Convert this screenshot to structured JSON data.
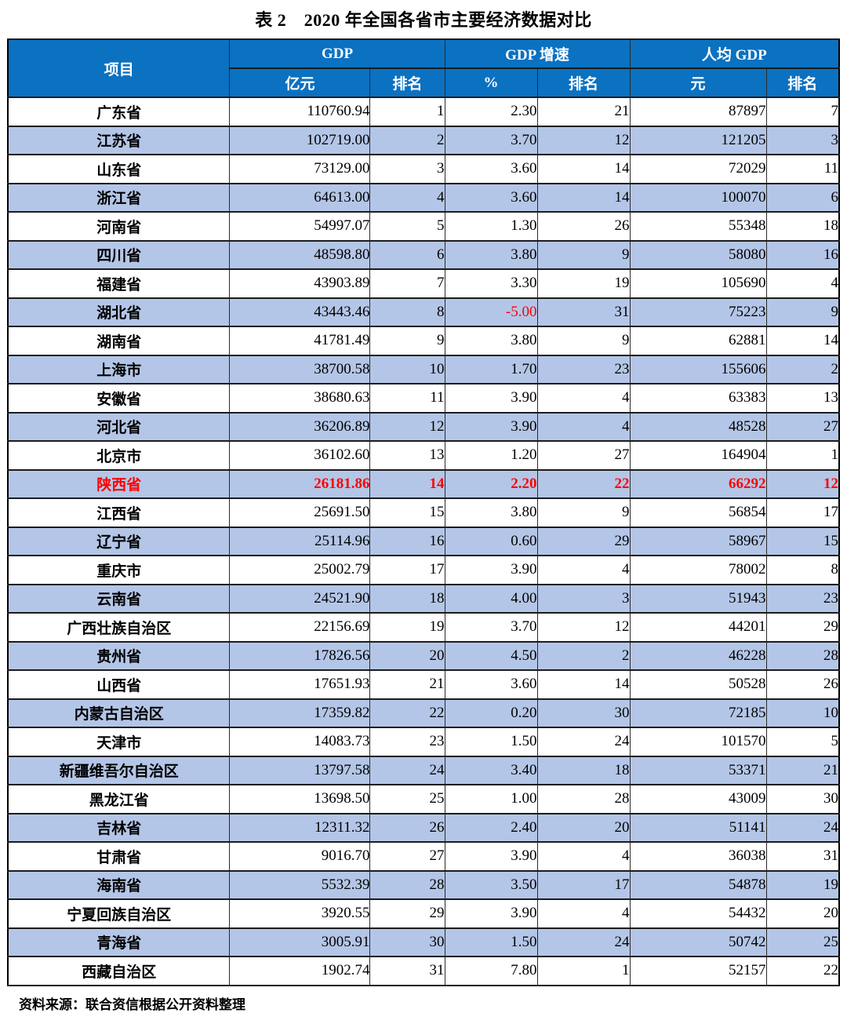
{
  "title": "表 2　2020 年全国各省市主要经济数据对比",
  "source_note": "资料来源：联合资信根据公开资料整理",
  "colors": {
    "header_bg": "#0B71C1",
    "alt_row_bg": "#B4C6E7",
    "highlight_text": "#FF0000",
    "negative_text": "#FF0000"
  },
  "table": {
    "header": {
      "item": "项目",
      "groups": [
        {
          "label": "GDP",
          "sub": [
            "亿元",
            "排名"
          ]
        },
        {
          "label": "GDP 增速",
          "sub": [
            "%",
            "排名"
          ]
        },
        {
          "label": "人均 GDP",
          "sub": [
            "元",
            "排名"
          ]
        }
      ]
    },
    "rows": [
      {
        "province": "广东省",
        "gdp": "110760.94",
        "gdp_rank": "1",
        "growth": "2.30",
        "growth_rank": "21",
        "per_capita": "87897",
        "pc_rank": "7",
        "highlight": false,
        "growth_red": false
      },
      {
        "province": "江苏省",
        "gdp": "102719.00",
        "gdp_rank": "2",
        "growth": "3.70",
        "growth_rank": "12",
        "per_capita": "121205",
        "pc_rank": "3",
        "highlight": false,
        "growth_red": false
      },
      {
        "province": "山东省",
        "gdp": "73129.00",
        "gdp_rank": "3",
        "growth": "3.60",
        "growth_rank": "14",
        "per_capita": "72029",
        "pc_rank": "11",
        "highlight": false,
        "growth_red": false
      },
      {
        "province": "浙江省",
        "gdp": "64613.00",
        "gdp_rank": "4",
        "growth": "3.60",
        "growth_rank": "14",
        "per_capita": "100070",
        "pc_rank": "6",
        "highlight": false,
        "growth_red": false
      },
      {
        "province": "河南省",
        "gdp": "54997.07",
        "gdp_rank": "5",
        "growth": "1.30",
        "growth_rank": "26",
        "per_capita": "55348",
        "pc_rank": "18",
        "highlight": false,
        "growth_red": false
      },
      {
        "province": "四川省",
        "gdp": "48598.80",
        "gdp_rank": "6",
        "growth": "3.80",
        "growth_rank": "9",
        "per_capita": "58080",
        "pc_rank": "16",
        "highlight": false,
        "growth_red": false
      },
      {
        "province": "福建省",
        "gdp": "43903.89",
        "gdp_rank": "7",
        "growth": "3.30",
        "growth_rank": "19",
        "per_capita": "105690",
        "pc_rank": "4",
        "highlight": false,
        "growth_red": false
      },
      {
        "province": "湖北省",
        "gdp": "43443.46",
        "gdp_rank": "8",
        "growth": "-5.00",
        "growth_rank": "31",
        "per_capita": "75223",
        "pc_rank": "9",
        "highlight": false,
        "growth_red": true
      },
      {
        "province": "湖南省",
        "gdp": "41781.49",
        "gdp_rank": "9",
        "growth": "3.80",
        "growth_rank": "9",
        "per_capita": "62881",
        "pc_rank": "14",
        "highlight": false,
        "growth_red": false
      },
      {
        "province": "上海市",
        "gdp": "38700.58",
        "gdp_rank": "10",
        "growth": "1.70",
        "growth_rank": "23",
        "per_capita": "155606",
        "pc_rank": "2",
        "highlight": false,
        "growth_red": false
      },
      {
        "province": "安徽省",
        "gdp": "38680.63",
        "gdp_rank": "11",
        "growth": "3.90",
        "growth_rank": "4",
        "per_capita": "63383",
        "pc_rank": "13",
        "highlight": false,
        "growth_red": false
      },
      {
        "province": "河北省",
        "gdp": "36206.89",
        "gdp_rank": "12",
        "growth": "3.90",
        "growth_rank": "4",
        "per_capita": "48528",
        "pc_rank": "27",
        "highlight": false,
        "growth_red": false
      },
      {
        "province": "北京市",
        "gdp": "36102.60",
        "gdp_rank": "13",
        "growth": "1.20",
        "growth_rank": "27",
        "per_capita": "164904",
        "pc_rank": "1",
        "highlight": false,
        "growth_red": false
      },
      {
        "province": "陕西省",
        "gdp": "26181.86",
        "gdp_rank": "14",
        "growth": "2.20",
        "growth_rank": "22",
        "per_capita": "66292",
        "pc_rank": "12",
        "highlight": true,
        "growth_red": false
      },
      {
        "province": "江西省",
        "gdp": "25691.50",
        "gdp_rank": "15",
        "growth": "3.80",
        "growth_rank": "9",
        "per_capita": "56854",
        "pc_rank": "17",
        "highlight": false,
        "growth_red": false
      },
      {
        "province": "辽宁省",
        "gdp": "25114.96",
        "gdp_rank": "16",
        "growth": "0.60",
        "growth_rank": "29",
        "per_capita": "58967",
        "pc_rank": "15",
        "highlight": false,
        "growth_red": false
      },
      {
        "province": "重庆市",
        "gdp": "25002.79",
        "gdp_rank": "17",
        "growth": "3.90",
        "growth_rank": "4",
        "per_capita": "78002",
        "pc_rank": "8",
        "highlight": false,
        "growth_red": false
      },
      {
        "province": "云南省",
        "gdp": "24521.90",
        "gdp_rank": "18",
        "growth": "4.00",
        "growth_rank": "3",
        "per_capita": "51943",
        "pc_rank": "23",
        "highlight": false,
        "growth_red": false
      },
      {
        "province": "广西壮族自治区",
        "gdp": "22156.69",
        "gdp_rank": "19",
        "growth": "3.70",
        "growth_rank": "12",
        "per_capita": "44201",
        "pc_rank": "29",
        "highlight": false,
        "growth_red": false
      },
      {
        "province": "贵州省",
        "gdp": "17826.56",
        "gdp_rank": "20",
        "growth": "4.50",
        "growth_rank": "2",
        "per_capita": "46228",
        "pc_rank": "28",
        "highlight": false,
        "growth_red": false
      },
      {
        "province": "山西省",
        "gdp": "17651.93",
        "gdp_rank": "21",
        "growth": "3.60",
        "growth_rank": "14",
        "per_capita": "50528",
        "pc_rank": "26",
        "highlight": false,
        "growth_red": false
      },
      {
        "province": "内蒙古自治区",
        "gdp": "17359.82",
        "gdp_rank": "22",
        "growth": "0.20",
        "growth_rank": "30",
        "per_capita": "72185",
        "pc_rank": "10",
        "highlight": false,
        "growth_red": false
      },
      {
        "province": "天津市",
        "gdp": "14083.73",
        "gdp_rank": "23",
        "growth": "1.50",
        "growth_rank": "24",
        "per_capita": "101570",
        "pc_rank": "5",
        "highlight": false,
        "growth_red": false
      },
      {
        "province": "新疆维吾尔自治区",
        "gdp": "13797.58",
        "gdp_rank": "24",
        "growth": "3.40",
        "growth_rank": "18",
        "per_capita": "53371",
        "pc_rank": "21",
        "highlight": false,
        "growth_red": false
      },
      {
        "province": "黑龙江省",
        "gdp": "13698.50",
        "gdp_rank": "25",
        "growth": "1.00",
        "growth_rank": "28",
        "per_capita": "43009",
        "pc_rank": "30",
        "highlight": false,
        "growth_red": false
      },
      {
        "province": "吉林省",
        "gdp": "12311.32",
        "gdp_rank": "26",
        "growth": "2.40",
        "growth_rank": "20",
        "per_capita": "51141",
        "pc_rank": "24",
        "highlight": false,
        "growth_red": false
      },
      {
        "province": "甘肃省",
        "gdp": "9016.70",
        "gdp_rank": "27",
        "growth": "3.90",
        "growth_rank": "4",
        "per_capita": "36038",
        "pc_rank": "31",
        "highlight": false,
        "growth_red": false
      },
      {
        "province": "海南省",
        "gdp": "5532.39",
        "gdp_rank": "28",
        "growth": "3.50",
        "growth_rank": "17",
        "per_capita": "54878",
        "pc_rank": "19",
        "highlight": false,
        "growth_red": false
      },
      {
        "province": "宁夏回族自治区",
        "gdp": "3920.55",
        "gdp_rank": "29",
        "growth": "3.90",
        "growth_rank": "4",
        "per_capita": "54432",
        "pc_rank": "20",
        "highlight": false,
        "growth_red": false
      },
      {
        "province": "青海省",
        "gdp": "3005.91",
        "gdp_rank": "30",
        "growth": "1.50",
        "growth_rank": "24",
        "per_capita": "50742",
        "pc_rank": "25",
        "highlight": false,
        "growth_red": false
      },
      {
        "province": "西藏自治区",
        "gdp": "1902.74",
        "gdp_rank": "31",
        "growth": "7.80",
        "growth_rank": "1",
        "per_capita": "52157",
        "pc_rank": "22",
        "highlight": false,
        "growth_red": false
      }
    ]
  }
}
